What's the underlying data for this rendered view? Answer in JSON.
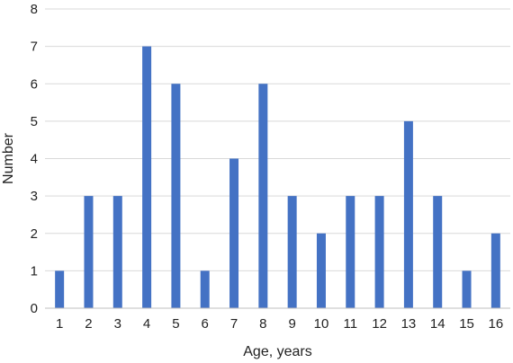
{
  "chart_data": {
    "type": "bar",
    "categories": [
      "1",
      "2",
      "3",
      "4",
      "5",
      "6",
      "7",
      "8",
      "9",
      "10",
      "11",
      "12",
      "13",
      "14",
      "15",
      "16"
    ],
    "values": [
      1,
      3,
      3,
      7,
      6,
      1,
      4,
      6,
      3,
      2,
      3,
      3,
      5,
      3,
      1,
      2
    ],
    "ylim": [
      0,
      8
    ],
    "yticks": [
      0,
      1,
      2,
      3,
      4,
      5,
      6,
      7,
      8
    ],
    "xlabel": "Age, years",
    "ylabel": "Number",
    "grid": true,
    "legend": "none",
    "bar_color": "#4472C4"
  }
}
